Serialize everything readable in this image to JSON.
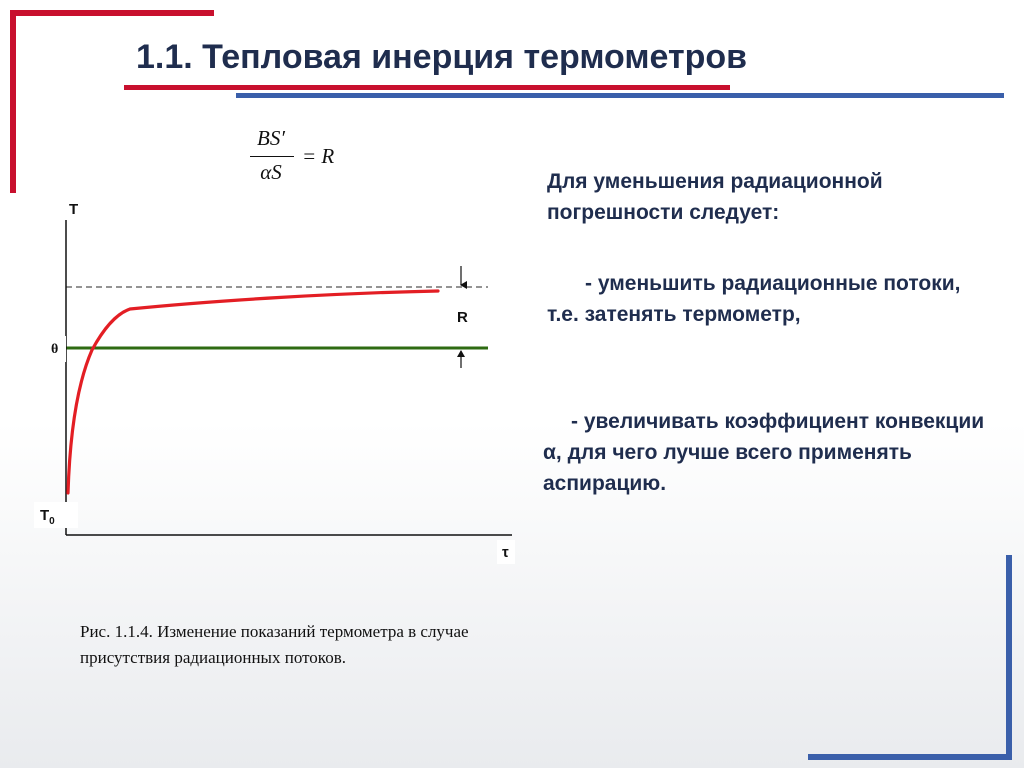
{
  "title": "1.1. Тепловая инерция термометров",
  "formula": {
    "numerator": "BS′",
    "denominator": "αS",
    "rhs": "= R"
  },
  "diagram": {
    "y_axis_label": "T",
    "x_axis_label": "τ",
    "theta_label": "θ",
    "r_label": "R",
    "t0_label": "T",
    "t0_subscript": "0",
    "colors": {
      "curve": "#e31e24",
      "theta_line": "#2e6b12",
      "dashed_line": "#555555",
      "axes": "#111111"
    }
  },
  "text": {
    "intro": "Для уменьшения радиационной погрешности следует:",
    "bullet_1": "-  уменьшить радиационные потоки, т.е. затенять термометр,",
    "bullet_2": "- увеличивать коэффициент конвекции α, для чего лучше всего применять аспирацию."
  },
  "caption": "Рис. 1.1.4. Изменение показаний термометра в случае присутствия радиационных потоков.",
  "colors": {
    "accent_red": "#c8102e",
    "accent_blue": "#3a5faa",
    "text_dark": "#1f2d4e"
  }
}
